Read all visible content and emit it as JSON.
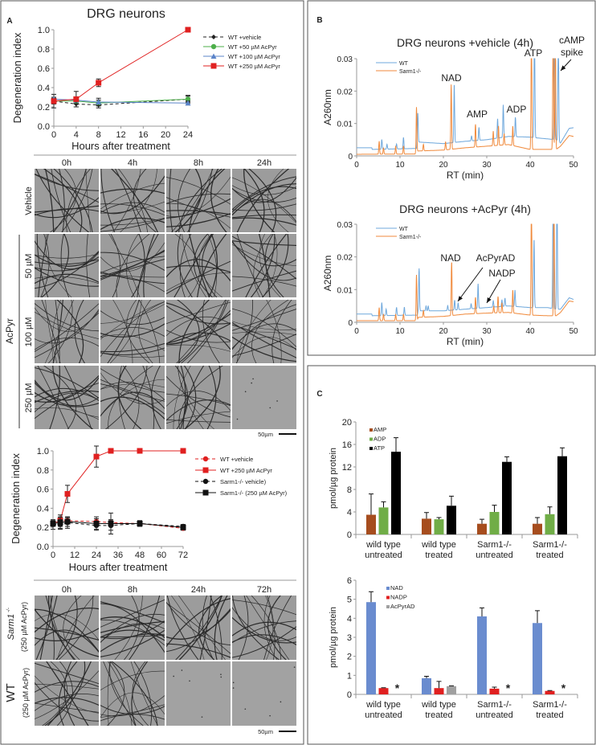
{
  "panels": {
    "a": "A",
    "b": "B",
    "c": "C"
  },
  "micrographs_top": {
    "col_headers": [
      "0h",
      "4h",
      "8h",
      "24h"
    ],
    "row_labels": [
      "Vehicle",
      "50 µM",
      "100 µM",
      "250 µM"
    ],
    "group_label": "AcPyr",
    "scale_bar": "50µm"
  },
  "micrographs_bottom": {
    "col_headers": [
      "0h",
      "8h",
      "24h",
      "72h"
    ],
    "row1_label": "Sarm1",
    "row1_sup": "-/-",
    "row1_sub": "(250 µM AcPyr)",
    "row2_label": "WT",
    "row2_sub": "(250 µM AcPyr)",
    "scale_bar": "50µm"
  },
  "chart_data": [
    {
      "type": "line",
      "title": "DRG neurons",
      "xlabel": "Hours after treatment",
      "ylabel": "Degeneration index",
      "xlim": [
        0,
        24
      ],
      "ylim": [
        0,
        1.0
      ],
      "xticks": [
        "0",
        "4",
        "8",
        "12",
        "16",
        "20",
        "24"
      ],
      "yticks": [
        "0.0",
        "0.2",
        "0.4",
        "0.6",
        "0.8",
        "1.0"
      ],
      "legend": "right",
      "series": [
        {
          "name": "WT +vehicle",
          "x": [
            0,
            4,
            8,
            24
          ],
          "y": [
            0.26,
            0.23,
            0.22,
            0.28
          ],
          "err": [
            0.07,
            0.03,
            0.03,
            0.04
          ],
          "color": "#222222",
          "marker": "diamond",
          "dash": true
        },
        {
          "name": "WT +50 µM AcPyr",
          "x": [
            0,
            4,
            8,
            24
          ],
          "y": [
            0.26,
            0.26,
            0.24,
            0.28
          ],
          "err": [
            0.03,
            0.02,
            0.03,
            0.03
          ],
          "color": "#4daf4a",
          "marker": "circle",
          "dash": false
        },
        {
          "name": "WT +100 µM AcPyr",
          "x": [
            0,
            4,
            8,
            24
          ],
          "y": [
            0.28,
            0.27,
            0.25,
            0.24
          ],
          "err": [
            0.02,
            0.02,
            0.04,
            0.02
          ],
          "color": "#5b84c9",
          "marker": "triangle",
          "dash": false
        },
        {
          "name": "WT +250 µM AcPyr",
          "x": [
            0,
            4,
            8,
            24
          ],
          "y": [
            0.26,
            0.28,
            0.45,
            1.0
          ],
          "err": [
            0.02,
            0.08,
            0.04,
            0.0
          ],
          "color": "#e02020",
          "marker": "square",
          "dash": false
        }
      ]
    },
    {
      "type": "line",
      "title": "",
      "xlabel": "Hours after treatment",
      "ylabel": "Degeneration index",
      "xlim": [
        0,
        72
      ],
      "ylim": [
        0,
        1.0
      ],
      "xticks": [
        "0",
        "12",
        "24",
        "36",
        "48",
        "60",
        "72"
      ],
      "yticks": [
        "0.0",
        "0.2",
        "0.4",
        "0.6",
        "0.8",
        "1.0"
      ],
      "legend": "right",
      "series": [
        {
          "name": "WT +vehicle",
          "x": [
            0,
            4,
            8,
            24,
            32,
            48,
            72
          ],
          "y": [
            0.24,
            0.27,
            0.27,
            0.26,
            0.25,
            0.24,
            0.19
          ],
          "err": [
            0.03,
            0.03,
            0.03,
            0.03,
            0.03,
            0.02,
            0.02
          ],
          "color": "#e02020",
          "marker": "circle",
          "dash": true
        },
        {
          "name": "WT +250 µM AcPyr",
          "x": [
            0,
            4,
            8,
            24,
            32,
            48,
            72
          ],
          "y": [
            0.24,
            0.27,
            0.55,
            0.94,
            1.0,
            1.0,
            1.0
          ],
          "err": [
            0.03,
            0.06,
            0.09,
            0.11,
            0.0,
            0.0,
            0.0
          ],
          "color": "#e02020",
          "marker": "square",
          "dash": false
        },
        {
          "name": "Sarm1-/- vehicle)",
          "x": [
            0,
            4,
            8,
            24,
            32,
            48,
            72
          ],
          "y": [
            0.23,
            0.23,
            0.25,
            0.22,
            0.22,
            0.24,
            0.21
          ],
          "err": [
            0.05,
            0.05,
            0.06,
            0.04,
            0.05,
            0.03,
            0.02
          ],
          "color": "#111111",
          "marker": "circle",
          "dash": true
        },
        {
          "name": "Sarm1-/- (250 µM AcPyr)",
          "x": [
            0,
            4,
            8,
            24,
            32,
            48,
            72
          ],
          "y": [
            0.24,
            0.25,
            0.26,
            0.24,
            0.24,
            0.24,
            0.2
          ],
          "err": [
            0.03,
            0.06,
            0.05,
            0.07,
            0.11,
            0.03,
            0.02
          ],
          "color": "#111111",
          "marker": "square",
          "dash": false
        }
      ]
    },
    {
      "type": "line",
      "title": "DRG neurons +vehicle (4h)",
      "xlabel": "RT (min)",
      "ylabel": "A260nm",
      "xlim": [
        0,
        50
      ],
      "ylim": [
        0,
        0.03
      ],
      "xticks": [
        "0",
        "10",
        "20",
        "30",
        "40",
        "50"
      ],
      "yticks": [
        "0",
        "0.01",
        "0.02",
        "0.03"
      ],
      "legend": "top-left",
      "annotations": [
        "NAD",
        "AMP",
        "ADP",
        "ATP",
        "cAMP",
        "spike"
      ],
      "series": [
        {
          "name": "WT",
          "color": "#6fa8dc",
          "baseline": [
            [
              0,
              0.0025
            ],
            [
              3.5,
              0.0025
            ],
            [
              3.6,
              0.002
            ],
            [
              13.8,
              0.0023
            ],
            [
              14.0,
              0.0043
            ],
            [
              20,
              0.0038
            ],
            [
              25,
              0.0045
            ],
            [
              30,
              0.005
            ],
            [
              35,
              0.006
            ],
            [
              40,
              0.0058
            ],
            [
              42,
              0.0055
            ],
            [
              46,
              0.005
            ],
            [
              47,
              0.004
            ],
            [
              49,
              0.0085
            ],
            [
              50,
              0.0087
            ]
          ],
          "peaks": [
            [
              5.8,
              0.003
            ],
            [
              7,
              0.0015
            ],
            [
              9.2,
              0.0015
            ],
            [
              10.8,
              0.0035
            ],
            [
              14.1,
              0.009
            ],
            [
              22.5,
              0.018
            ],
            [
              26.5,
              0.0015
            ],
            [
              28.2,
              0.004
            ],
            [
              32.5,
              0.006
            ],
            [
              33.8,
              0.01
            ],
            [
              36.6,
              0.006
            ],
            [
              41.0,
              0.04
            ],
            [
              45.6,
              0.04
            ],
            [
              46.5,
              0.04
            ]
          ]
        },
        {
          "name": "Sarm1-/-",
          "color": "#f08a3c",
          "baseline": [
            [
              0,
              0.0005
            ],
            [
              13.7,
              0.0006
            ],
            [
              13.9,
              0.0015
            ],
            [
              20,
              0.0018
            ],
            [
              25,
              0.0025
            ],
            [
              30,
              0.003
            ],
            [
              35,
              0.0035
            ],
            [
              40,
              0.002
            ],
            [
              44,
              0.002
            ],
            [
              46,
              0.002
            ],
            [
              47,
              0.003
            ],
            [
              49,
              0.0063
            ],
            [
              50,
              0.006
            ]
          ],
          "peaks": [
            [
              5.2,
              0.004
            ],
            [
              6.2,
              0.002
            ],
            [
              9.0,
              0.0025
            ],
            [
              10.8,
              0.0025
            ],
            [
              13.8,
              0.014
            ],
            [
              15.4,
              0.002
            ],
            [
              20.5,
              0.0025
            ],
            [
              21.8,
              0.02
            ],
            [
              27.4,
              0.007
            ],
            [
              31.5,
              0.0045
            ],
            [
              32.7,
              0.006
            ],
            [
              34.0,
              0.0035
            ],
            [
              36.0,
              0.006
            ],
            [
              40.3,
              0.04
            ],
            [
              45.3,
              0.04
            ],
            [
              45.8,
              0.04
            ]
          ]
        }
      ]
    },
    {
      "type": "line",
      "title": "DRG neurons +AcPyr (4h)",
      "xlabel": "RT (min)",
      "ylabel": "A260nm",
      "xlim": [
        0,
        50
      ],
      "ylim": [
        0,
        0.03
      ],
      "xticks": [
        "0",
        "10",
        "20",
        "30",
        "40",
        "50"
      ],
      "yticks": [
        "0",
        "0.01",
        "0.02",
        "0.03"
      ],
      "legend": "top-left",
      "annotations": [
        "NAD",
        "AcPyrAD",
        "NADP"
      ],
      "series": [
        {
          "name": "WT",
          "color": "#6fa8dc",
          "baseline": [
            [
              0,
              0.0025
            ],
            [
              3.5,
              0.0025
            ],
            [
              3.6,
              0.002
            ],
            [
              14.0,
              0.0022
            ],
            [
              14.2,
              0.0035
            ],
            [
              20,
              0.0035
            ],
            [
              25,
              0.004
            ],
            [
              30,
              0.0045
            ],
            [
              35,
              0.005
            ],
            [
              40,
              0.0045
            ],
            [
              44,
              0.0045
            ],
            [
              46,
              0.004
            ],
            [
              47,
              0.004
            ],
            [
              49,
              0.0075
            ],
            [
              50,
              0.007
            ]
          ],
          "peaks": [
            [
              5.8,
              0.004
            ],
            [
              6.8,
              0.002
            ],
            [
              9.2,
              0.0025
            ],
            [
              11,
              0.0025
            ],
            [
              14.4,
              0.013
            ],
            [
              16,
              0.0015
            ],
            [
              16.5,
              0.0015
            ],
            [
              21,
              0.0015
            ],
            [
              22.6,
              0.003
            ],
            [
              23.4,
              0.002
            ],
            [
              26.4,
              0.0015
            ],
            [
              28.0,
              0.0075
            ],
            [
              31.5,
              0.002
            ],
            [
              33.5,
              0.002
            ],
            [
              34.2,
              0.0025
            ],
            [
              36.5,
              0.005
            ],
            [
              40.9,
              0.021
            ],
            [
              45.3,
              0.04
            ],
            [
              46.2,
              0.04
            ]
          ]
        },
        {
          "name": "Sarm1-/-",
          "color": "#f08a3c",
          "baseline": [
            [
              0,
              0.0005
            ],
            [
              14.0,
              0.0005
            ],
            [
              14.2,
              0.0015
            ],
            [
              20,
              0.0018
            ],
            [
              25,
              0.0025
            ],
            [
              30,
              0.0028
            ],
            [
              35,
              0.003
            ],
            [
              40,
              0.0022
            ],
            [
              44,
              0.002
            ],
            [
              46,
              0.002
            ],
            [
              47,
              0.003
            ],
            [
              49,
              0.0065
            ],
            [
              50,
              0.0063
            ]
          ],
          "peaks": [
            [
              5.2,
              0.004
            ],
            [
              6.2,
              0.002
            ],
            [
              9.0,
              0.002
            ],
            [
              10.8,
              0.002
            ],
            [
              13.8,
              0.014
            ],
            [
              15.4,
              0.002
            ],
            [
              21.9,
              0.0165
            ],
            [
              27.4,
              0.005
            ],
            [
              31.6,
              0.002
            ],
            [
              32.6,
              0.005
            ],
            [
              33.5,
              0.003
            ],
            [
              36.0,
              0.007
            ],
            [
              40.3,
              0.04
            ],
            [
              45.5,
              0.04
            ]
          ]
        }
      ]
    },
    {
      "type": "bar",
      "title": "",
      "xlabel": "",
      "ylabel": "pmol/µg protein",
      "ylim": [
        0,
        20
      ],
      "yticks": [
        "0",
        "4",
        "8",
        "12",
        "16",
        "20"
      ],
      "categories": [
        [
          "wild type",
          "untreated"
        ],
        [
          "wild type",
          "treated"
        ],
        [
          "Sarm1-/-",
          "untreated"
        ],
        [
          "Sarm1-/-",
          "treated"
        ]
      ],
      "legend": "top-left",
      "series": [
        {
          "name": "AMP",
          "color": "#a64d1e",
          "values": [
            3.5,
            2.8,
            1.9,
            1.9
          ],
          "err": [
            3.7,
            1.1,
            0.8,
            1.1
          ]
        },
        {
          "name": "ADP",
          "color": "#70ad47",
          "values": [
            4.8,
            2.7,
            4.0,
            3.6
          ],
          "err": [
            1.0,
            0.3,
            1.2,
            1.3
          ]
        },
        {
          "name": "ATP",
          "color": "#000000",
          "values": [
            14.7,
            5.1,
            12.9,
            13.9
          ],
          "err": [
            2.5,
            1.7,
            0.9,
            1.5
          ]
        }
      ]
    },
    {
      "type": "bar",
      "title": "",
      "xlabel": "",
      "ylabel": "pmol/µg protein",
      "ylim": [
        0,
        6
      ],
      "yticks": [
        "0",
        "1",
        "2",
        "3",
        "4",
        "5",
        "6"
      ],
      "categories": [
        [
          "wild type",
          "untreated"
        ],
        [
          "wild type",
          "treated"
        ],
        [
          "Sarm1-/-",
          "untreated"
        ],
        [
          "Sarm1-/-",
          "treated"
        ]
      ],
      "legend": "top-left",
      "annotations": [
        "*",
        "",
        "*",
        "*"
      ],
      "series": [
        {
          "name": "NAD",
          "color": "#6a8ccf",
          "values": [
            4.85,
            0.85,
            4.1,
            3.75
          ],
          "err": [
            0.55,
            0.1,
            0.45,
            0.65
          ]
        },
        {
          "name": "NADP",
          "color": "#e02020",
          "values": [
            0.33,
            0.33,
            0.3,
            0.18
          ],
          "err": [
            0.02,
            0.35,
            0.08,
            0.02
          ]
        },
        {
          "name": "AcPyrAD",
          "color": "#a0a0a0",
          "values": [
            0,
            0.43,
            0,
            0.02
          ],
          "err": [
            0,
            0.02,
            0,
            0
          ]
        }
      ]
    }
  ]
}
